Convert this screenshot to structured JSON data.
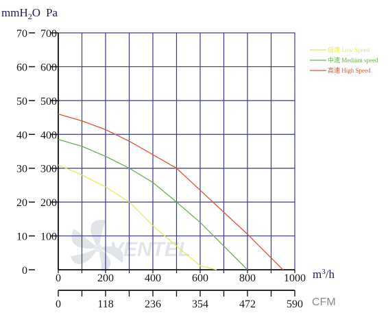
{
  "chart_data": {
    "type": "line",
    "units": {
      "y_left": "mmH2O",
      "y_right": "Pa",
      "x_top": "m3/h",
      "x_bottom": "CFM"
    },
    "y_left_ticks": [
      "0",
      "10",
      "20",
      "30",
      "40",
      "50",
      "60",
      "70"
    ],
    "y_right_ticks": [
      "100",
      "200",
      "300",
      "400",
      "500",
      "600",
      "700"
    ],
    "x_ticks": [
      "0",
      "200",
      "400",
      "600",
      "800",
      "1000"
    ],
    "cfm_ticks": [
      "0",
      "118",
      "236",
      "354",
      "472",
      "590"
    ],
    "xlim": [
      0,
      1000
    ],
    "ylim": [
      0,
      700
    ],
    "grid": true,
    "legend_position": "top-right",
    "watermark": "VENTEL",
    "series": [
      {
        "name": "低速 Low Speed",
        "color": "#e8e850",
        "points": [
          [
            0,
            310
          ],
          [
            100,
            280
          ],
          [
            200,
            245
          ],
          [
            300,
            200
          ],
          [
            400,
            130
          ],
          [
            500,
            70
          ],
          [
            600,
            12
          ],
          [
            670,
            0
          ]
        ]
      },
      {
        "name": "中速 Medium speed",
        "color": "#6ab04c",
        "points": [
          [
            0,
            385
          ],
          [
            100,
            365
          ],
          [
            200,
            335
          ],
          [
            300,
            300
          ],
          [
            400,
            258
          ],
          [
            500,
            200
          ],
          [
            600,
            140
          ],
          [
            700,
            70
          ],
          [
            800,
            0
          ]
        ]
      },
      {
        "name": "高速 High Speed",
        "color": "#e05030",
        "points": [
          [
            0,
            460
          ],
          [
            100,
            440
          ],
          [
            200,
            414
          ],
          [
            300,
            380
          ],
          [
            400,
            340
          ],
          [
            500,
            300
          ],
          [
            600,
            235
          ],
          [
            700,
            170
          ],
          [
            800,
            105
          ],
          [
            900,
            35
          ],
          [
            950,
            0
          ]
        ]
      }
    ]
  }
}
